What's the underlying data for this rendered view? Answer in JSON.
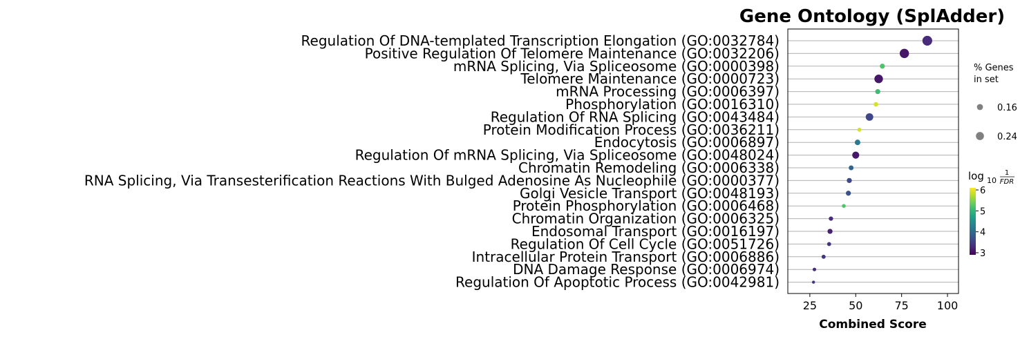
{
  "chart_data": {
    "type": "scatter",
    "title": "Gene Ontology (SplAdder)",
    "xlabel": "Combined Score",
    "xlim": [
      13,
      106
    ],
    "xticks": [
      25,
      50,
      75,
      100
    ],
    "grid": "horizontal",
    "points": [
      {
        "term": "Regulation Of DNA-templated Transcription Elongation (GO:0032784)",
        "x": 89,
        "log10_inv_fdr": 3.3,
        "pct_genes": 0.31
      },
      {
        "term": "Positive Regulation Of Telomere Maintenance (GO:0032206)",
        "x": 76.5,
        "log10_inv_fdr": 3.1,
        "pct_genes": 0.29
      },
      {
        "term": "mRNA Splicing, Via Spliceosome (GO:0000398)",
        "x": 64.5,
        "log10_inv_fdr": 5.2,
        "pct_genes": 0.12
      },
      {
        "term": "Telomere Maintenance (GO:0000723)",
        "x": 62.5,
        "log10_inv_fdr": 3.1,
        "pct_genes": 0.26
      },
      {
        "term": "mRNA Processing (GO:0006397)",
        "x": 62,
        "log10_inv_fdr": 5.1,
        "pct_genes": 0.12
      },
      {
        "term": "Phosphorylation (GO:0016310)",
        "x": 61,
        "log10_inv_fdr": 5.9,
        "pct_genes": 0.1
      },
      {
        "term": "Regulation Of RNA Splicing (GO:0043484)",
        "x": 57.5,
        "log10_inv_fdr": 3.6,
        "pct_genes": 0.22
      },
      {
        "term": "Protein Modification Process (GO:0036211)",
        "x": 52,
        "log10_inv_fdr": 5.9,
        "pct_genes": 0.08
      },
      {
        "term": "Endocytosis (GO:0006897)",
        "x": 51,
        "log10_inv_fdr": 4.2,
        "pct_genes": 0.14
      },
      {
        "term": "Regulation Of mRNA Splicing, Via Spliceosome (GO:0048024)",
        "x": 50,
        "log10_inv_fdr": 3.1,
        "pct_genes": 0.2
      },
      {
        "term": "Chromatin Remodeling (GO:0006338)",
        "x": 47.5,
        "log10_inv_fdr": 3.9,
        "pct_genes": 0.11
      },
      {
        "term": "RNA Splicing, Via Transesterification Reactions With Bulged Adenosine As Nucleophile (GO:0000377)",
        "x": 46.5,
        "log10_inv_fdr": 3.6,
        "pct_genes": 0.12
      },
      {
        "term": "Golgi Vesicle Transport (GO:0048193)",
        "x": 46,
        "log10_inv_fdr": 3.7,
        "pct_genes": 0.12
      },
      {
        "term": "Protein Phosphorylation (GO:0006468)",
        "x": 43.5,
        "log10_inv_fdr": 5.2,
        "pct_genes": 0.07
      },
      {
        "term": "Chromatin Organization (GO:0006325)",
        "x": 36.5,
        "log10_inv_fdr": 3.3,
        "pct_genes": 0.09
      },
      {
        "term": "Endosomal Transport (GO:0016197)",
        "x": 36,
        "log10_inv_fdr": 3.2,
        "pct_genes": 0.12
      },
      {
        "term": "Regulation Of Cell Cycle (GO:0051726)",
        "x": 35.5,
        "log10_inv_fdr": 3.4,
        "pct_genes": 0.08
      },
      {
        "term": "Intracellular Protein Transport (GO:0006886)",
        "x": 32.5,
        "log10_inv_fdr": 3.4,
        "pct_genes": 0.08
      },
      {
        "term": "DNA Damage Response (GO:0006974)",
        "x": 27.5,
        "log10_inv_fdr": 3.3,
        "pct_genes": 0.06
      },
      {
        "term": "Regulation Of Apoptotic Process (GO:0042981)",
        "x": 27,
        "log10_inv_fdr": 3.4,
        "pct_genes": 0.04
      }
    ],
    "size_legend": {
      "title_lines": [
        "% Genes",
        "in set"
      ],
      "entries": [
        {
          "label": "0.16",
          "value": 0.16
        },
        {
          "label": "0.24",
          "value": 0.24
        }
      ]
    },
    "colorbar": {
      "label_base": "log",
      "label_sub": "10",
      "label_num": "1",
      "label_den": "FDR",
      "ticks": [
        "3",
        "4",
        "5",
        "6"
      ],
      "range": [
        2.9,
        6.1
      ],
      "colormap": "viridis",
      "colors": [
        "#440154",
        "#482878",
        "#3e4989",
        "#31688e",
        "#26828e",
        "#1f9e89",
        "#35b779",
        "#6ece58",
        "#b5de2b",
        "#fde725"
      ]
    }
  }
}
